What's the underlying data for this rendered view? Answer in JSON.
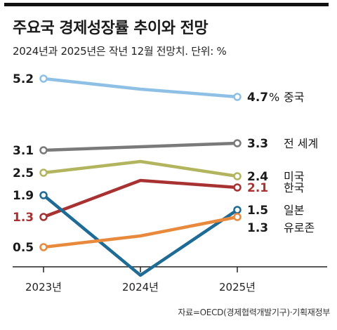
{
  "title": "주요국 경제성장률 추이와 전망",
  "subtitle": "2024년과 2025년은 작년 12월 전망치. 단위: %",
  "source": "자료=OECD(경제협력개발기구)·기획재정부",
  "chart_data": {
    "type": "line",
    "title": "주요국 경제성장률 추이와 전망",
    "x": [
      "2023년",
      "2024년",
      "2025년"
    ],
    "ylabel": "",
    "unit": "%",
    "ylim": [
      0.5,
      5.2
    ],
    "grid": false,
    "series": [
      {
        "name": "중국",
        "values": [
          5.2,
          null,
          4.7
        ],
        "color": "#8ec0e6",
        "start_label": "5.2",
        "end_label": "4.7"
      },
      {
        "name": "전 세계",
        "values": [
          3.1,
          null,
          3.3
        ],
        "color": "#7a7a7a",
        "start_label": "3.1",
        "end_label": "3.3"
      },
      {
        "name": "미국",
        "values": [
          2.5,
          null,
          2.4
        ],
        "color": "#b3b45e",
        "start_label": "2.5",
        "end_label": "2.4"
      },
      {
        "name": "한국",
        "values": [
          1.3,
          null,
          2.1
        ],
        "color": "#a83232",
        "start_label": "1.3",
        "end_label": "2.1"
      },
      {
        "name": "일본",
        "values": [
          1.9,
          null,
          1.5
        ],
        "color": "#1e6b96",
        "start_label": "1.9",
        "end_label": "1.5"
      },
      {
        "name": "유로존",
        "values": [
          0.5,
          null,
          1.3
        ],
        "color": "#e8893c",
        "start_label": "0.5",
        "end_label": "1.3"
      }
    ]
  }
}
